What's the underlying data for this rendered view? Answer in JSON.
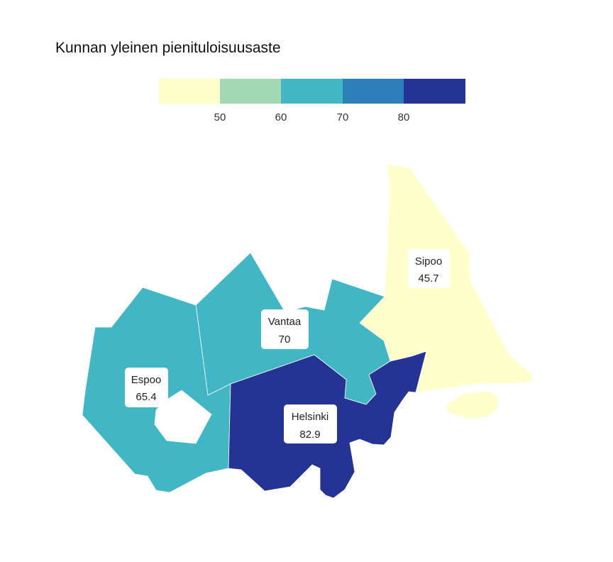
{
  "title": "Kunnan yleinen pienituloisuusaste",
  "legend": {
    "bins": [
      {
        "color": "#ffffcc"
      },
      {
        "color": "#a1dab4"
      },
      {
        "color": "#41b6c4"
      },
      {
        "color": "#2c7fb8"
      },
      {
        "color": "#253494"
      }
    ],
    "ticks": [
      "50",
      "60",
      "70",
      "80"
    ]
  },
  "regions": [
    {
      "name": "Espoo",
      "value": "65.4",
      "color": "#41b6c4"
    },
    {
      "name": "Vantaa",
      "value": "70",
      "color": "#41b6c4"
    },
    {
      "name": "Helsinki",
      "value": "82.9",
      "color": "#253494"
    },
    {
      "name": "Sipoo",
      "value": "45.7",
      "color": "#ffffcc"
    }
  ]
}
